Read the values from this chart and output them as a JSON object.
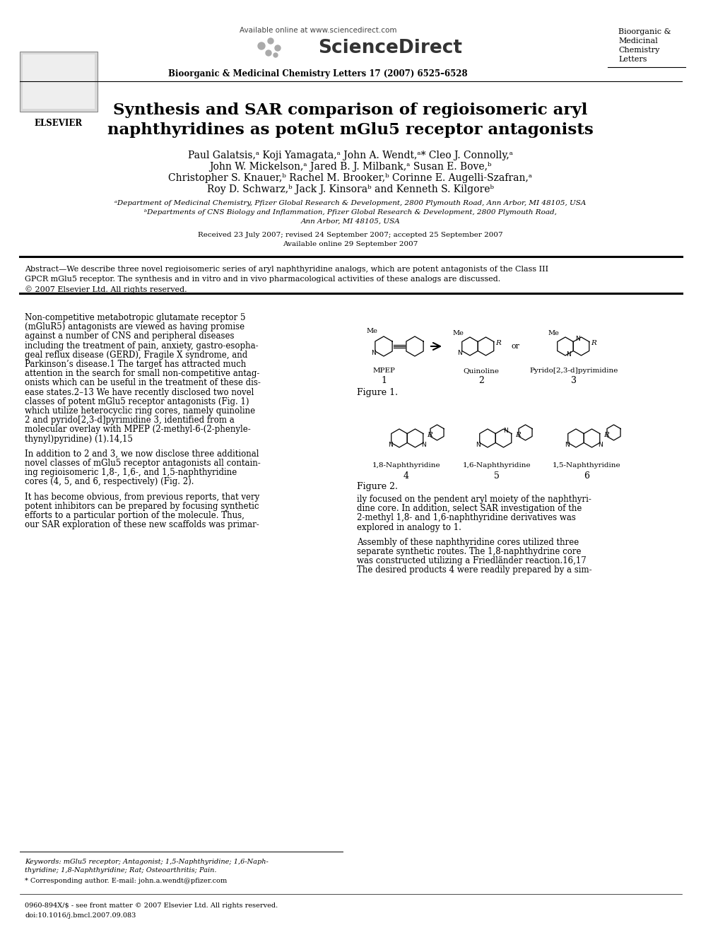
{
  "title_line1": "Synthesis and SAR comparison of regioisomeric aryl",
  "title_line2": "naphthyridines as potent mGlu5 receptor antagonists",
  "authors_line1": "Paul Galatsis,ᵃ Koji Yamagata,ᵃ John A. Wendt,ᵃ* Cleo J. Connolly,ᵃ",
  "authors_line2": "John W. Mickelson,ᵃ Jared B. J. Milbank,ᵃ Susan E. Bove,ᵇ",
  "authors_line3": "Christopher S. Knauer,ᵇ Rachel M. Brooker,ᵇ Corinne E. Augelli-Szafran,ᵃ",
  "authors_line4": "Roy D. Schwarz,ᵇ Jack J. Kinsoraᵇ and Kenneth S. Kilgoreᵇ",
  "affil_a": "ᵃDepartment of Medicinal Chemistry, Pfizer Global Research & Development, 2800 Plymouth Road, Ann Arbor, MI 48105, USA",
  "affil_b": "ᵇDepartments of CNS Biology and Inflammation, Pfizer Global Research & Development, 2800 Plymouth Road,",
  "affil_b2": "Ann Arbor, MI 48105, USA",
  "dates_line1": "Received 23 July 2007; revised 24 September 2007; accepted 25 September 2007",
  "dates_line2": "Available online 29 September 2007",
  "journal_header": "Bioorganic & Medicinal Chemistry Letters 17 (2007) 6525–6528",
  "journal_name_line1": "Bioorganic &",
  "journal_name_line2": "Medicinal",
  "journal_name_line3": "Chemistry",
  "journal_name_line4": "Letters",
  "sciencedirect_url": "Available online at www.sciencedirect.com",
  "elsevier_text": "ELSEVIER",
  "abstract_line1": "Abstract—We describe three novel regioisomeric series of aryl naphthyridine analogs, which are potent antagonists of the Class III",
  "abstract_line2": "GPCR mGlu5 receptor. The synthesis and in vitro and in vivo pharmacological activities of these analogs are discussed.",
  "copyright_text": "© 2007 Elsevier Ltd. All rights reserved.",
  "col1_lines": [
    "Non-competitive metabotropic glutamate receptor 5",
    "(mGluR5) antagonists are viewed as having promise",
    "against a number of CNS and peripheral diseases",
    "including the treatment of pain, anxiety, gastro-esopha-",
    "geal reflux disease (GERD), Fragile X syndrome, and",
    "Parkinson’s disease.1 The target has attracted much",
    "attention in the search for small non-competitive antag-",
    "onists which can be useful in the treatment of these dis-",
    "ease states.2–13 We have recently disclosed two novel",
    "classes of potent mGlu5 receptor antagonists (Fig. 1)",
    "which utilize heterocyclic ring cores, namely quinoline",
    "2 and pyrido[2,3-d]pyrimidine 3, identified from a",
    "molecular overlay with MPEP (2-methyl-6-(2-phenyle-",
    "thynyl)pyridine) (1).14,15"
  ],
  "col1_para2_lines": [
    "In addition to 2 and 3, we now disclose three additional",
    "novel classes of mGlu5 receptor antagonists all contain-",
    "ing regioisomeric 1,8-, 1,6-, and 1,5-naphthyridine",
    "cores (4, 5, and 6, respectively) (Fig. 2)."
  ],
  "col1_para3_lines": [
    "It has become obvious, from previous reports, that very",
    "potent inhibitors can be prepared by focusing synthetic",
    "efforts to a particular portion of the molecule. Thus,",
    "our SAR exploration of these new scaffolds was primar-"
  ],
  "col2_para1_lines": [
    "ily focused on the pendent aryl moiety of the naphthyri-",
    "dine core. In addition, select SAR investigation of the",
    "2-methyl 1,8- and 1,6-naphthyridine derivatives was",
    "explored in analogy to 1."
  ],
  "col2_para2_lines": [
    "Assembly of these naphthyridine cores utilized three",
    "separate synthetic routes. The 1,8-naphthydrine core",
    "was constructed utilizing a Friedländer reaction.16,17",
    "The desired products 4 were readily prepared by a sim-"
  ],
  "figure1_label": "Figure 1.",
  "figure2_label": "Figure 2.",
  "fig1_labels": [
    "MPEP",
    "Quinoline",
    "Pyrido[2,3-d]pyrimidine"
  ],
  "fig1_numbers": [
    "1",
    "2",
    "3"
  ],
  "fig2_labels": [
    "1,8-Naphthyridine",
    "1,6-Naphthyridine",
    "1,5-Naphthyridine"
  ],
  "fig2_numbers": [
    "4",
    "5",
    "6"
  ],
  "keywords_text": "Keywords: mGlu5 receptor; Antagonist; 1,5-Naphthyridine; 1,6-Naph-",
  "keywords_text2": "thyridine; 1,8-Naphthyridine; Rat; Osteoarthritis; Pain.",
  "corresponding_text": "* Corresponding author. E-mail: john.a.wendt@pfizer.com",
  "issn_text": "0960-894X/$ - see front matter © 2007 Elsevier Ltd. All rights reserved.",
  "doi_text": "doi:10.1016/j.bmcl.2007.09.083",
  "background_color": "#ffffff",
  "text_color": "#000000"
}
